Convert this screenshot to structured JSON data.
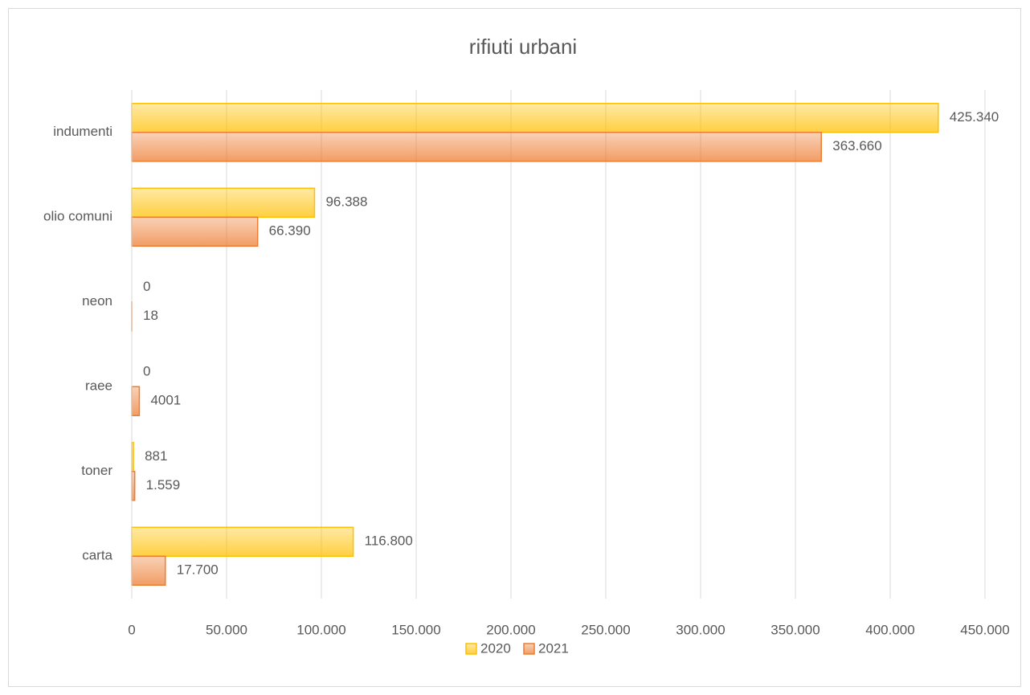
{
  "chart_data": {
    "type": "bar",
    "orientation": "horizontal",
    "title": "rifiuti urbani",
    "categories": [
      "indumenti",
      "olio comuni",
      "neon",
      "raee",
      "toner",
      "carta"
    ],
    "series": [
      {
        "name": "2020",
        "color": "#ffc000",
        "values": [
          425340,
          96388,
          0,
          0,
          881,
          116800
        ],
        "value_labels": [
          "425.340",
          "96.388",
          "0",
          "0",
          "881",
          "116.800"
        ]
      },
      {
        "name": "2021",
        "color": "#ed7d31",
        "values": [
          363660,
          66390,
          18,
          4001,
          1559,
          17700
        ],
        "value_labels": [
          "363.660",
          "66.390",
          "18",
          "4001",
          "1.559",
          "17.700"
        ]
      }
    ],
    "xlim": [
      0,
      450000
    ],
    "xticks": [
      0,
      {
        "value": 50000,
        "label": "50.000"
      },
      {
        "value": 100000,
        "label": "100.000"
      },
      {
        "value": 150000,
        "label": "150.000"
      },
      {
        "value": 200000,
        "label": "200.000"
      },
      {
        "value": 250000,
        "label": "250.000"
      },
      {
        "value": 300000,
        "label": "300.000"
      },
      {
        "value": 350000,
        "label": "350.000"
      },
      {
        "value": 400000,
        "label": "400.000"
      },
      {
        "value": 450000,
        "label": "450.000"
      }
    ],
    "grid": true,
    "legend": "bottom"
  }
}
